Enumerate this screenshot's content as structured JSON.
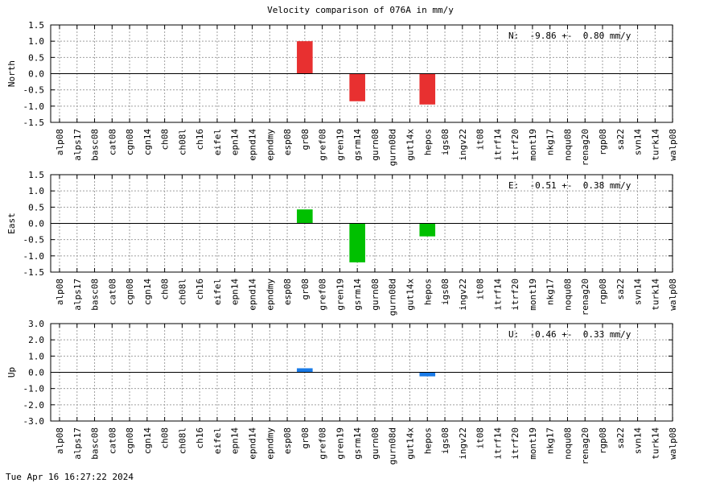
{
  "title": "Velocity comparison of 076A in mm/y",
  "timestamp": "Tue Apr 16 16:27:22 2024",
  "chart_data": [
    {
      "type": "bar",
      "ylabel": "North",
      "annotation": "N:  -9.86 +-  0.80 mm/y",
      "ylim": [
        -1.5,
        1.5
      ],
      "yticks": [
        1.5,
        1.0,
        0.5,
        0.0,
        -0.5,
        -1.0,
        -1.5
      ],
      "ytick_labels": [
        "1.5",
        "1.0",
        "0.5",
        "0.0",
        "-0.5",
        "-1.0",
        "-1.5"
      ],
      "color": "#e83030",
      "categories": [
        "alp08",
        "alps17",
        "basc08",
        "cat08",
        "cgn08",
        "cgn14",
        "ch08",
        "ch08l",
        "ch16",
        "eifel",
        "epn14",
        "epnd14",
        "epndmy",
        "esp08",
        "gr08",
        "gref08",
        "gren19",
        "gsrm14",
        "gurn08",
        "gurn08d",
        "gut14x",
        "hepos",
        "igs08",
        "ingv22",
        "it08",
        "itrf14",
        "itrf20",
        "mont19",
        "nkg17",
        "noqu08",
        "renag20",
        "rgp08",
        "sa22",
        "svn14",
        "turk14",
        "walp08"
      ],
      "values": [
        null,
        null,
        null,
        null,
        null,
        null,
        null,
        null,
        null,
        null,
        null,
        null,
        null,
        null,
        1.0,
        null,
        null,
        -0.85,
        null,
        null,
        null,
        -0.95,
        null,
        null,
        null,
        null,
        null,
        null,
        null,
        null,
        null,
        null,
        null,
        null,
        null,
        null
      ],
      "grid": true
    },
    {
      "type": "bar",
      "ylabel": "East",
      "annotation": "E:  -0.51 +-  0.38 mm/y",
      "ylim": [
        -1.5,
        1.5
      ],
      "yticks": [
        1.5,
        1.0,
        0.5,
        0.0,
        -0.5,
        -1.0,
        -1.5
      ],
      "ytick_labels": [
        "1.5",
        "1.0",
        "0.5",
        "0.0",
        "-0.5",
        "-1.0",
        "-1.5"
      ],
      "color": "#00c000",
      "categories": [
        "alp08",
        "alps17",
        "basc08",
        "cat08",
        "cgn08",
        "cgn14",
        "ch08",
        "ch08l",
        "ch16",
        "eifel",
        "epn14",
        "epnd14",
        "epndmy",
        "esp08",
        "gr08",
        "gref08",
        "gren19",
        "gsrm14",
        "gurn08",
        "gurn08d",
        "gut14x",
        "hepos",
        "igs08",
        "ingv22",
        "it08",
        "itrf14",
        "itrf20",
        "mont19",
        "nkg17",
        "noqu08",
        "renag20",
        "rgp08",
        "sa22",
        "svn14",
        "turk14",
        "walp08"
      ],
      "values": [
        null,
        null,
        null,
        null,
        null,
        null,
        null,
        null,
        null,
        null,
        null,
        null,
        null,
        null,
        0.43,
        null,
        null,
        -1.2,
        null,
        null,
        null,
        -0.4,
        null,
        null,
        null,
        null,
        null,
        null,
        null,
        null,
        null,
        null,
        null,
        null,
        null,
        null
      ],
      "grid": true
    },
    {
      "type": "bar",
      "ylabel": "Up",
      "annotation": "U:  -0.46 +-  0.33 mm/y",
      "ylim": [
        -3.0,
        3.0
      ],
      "yticks": [
        3.0,
        2.0,
        1.0,
        0.0,
        -1.0,
        -2.0,
        -3.0
      ],
      "ytick_labels": [
        "3.0",
        "2.0",
        "1.0",
        "0.0",
        "-1.0",
        "-2.0",
        "-3.0"
      ],
      "color": "#1a7be8",
      "categories": [
        "alp08",
        "alps17",
        "basc08",
        "cat08",
        "cgn08",
        "cgn14",
        "ch08",
        "ch08l",
        "ch16",
        "eifel",
        "epn14",
        "epnd14",
        "epndmy",
        "esp08",
        "gr08",
        "gref08",
        "gren19",
        "gsrm14",
        "gurn08",
        "gurn08d",
        "gut14x",
        "hepos",
        "igs08",
        "ingv22",
        "it08",
        "itrf14",
        "itrf20",
        "mont19",
        "nkg17",
        "noqu08",
        "renag20",
        "rgp08",
        "sa22",
        "svn14",
        "turk14",
        "walp08"
      ],
      "values": [
        null,
        null,
        null,
        null,
        null,
        null,
        null,
        null,
        null,
        null,
        null,
        null,
        null,
        null,
        0.25,
        null,
        null,
        null,
        null,
        null,
        null,
        -0.25,
        null,
        null,
        null,
        null,
        null,
        null,
        null,
        null,
        null,
        null,
        null,
        null,
        null,
        null
      ],
      "grid": true
    }
  ]
}
